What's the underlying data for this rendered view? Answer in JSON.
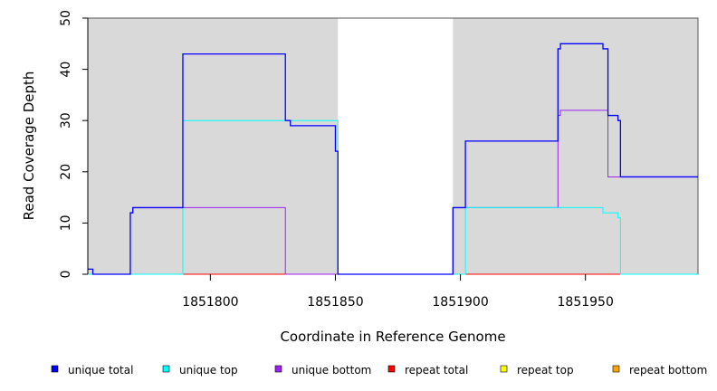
{
  "chart_data": {
    "type": "line",
    "xlabel": "Coordinate in Reference Genome",
    "ylabel": "Read Coverage Depth",
    "xlim": [
      1851751,
      1851995
    ],
    "ylim": [
      0,
      50
    ],
    "x_ticks": [
      1851800,
      1851850,
      1851900,
      1851950
    ],
    "y_ticks": [
      0,
      10,
      20,
      30,
      40,
      50
    ],
    "shaded_regions": [
      [
        1851751,
        1851851
      ],
      [
        1851897,
        1851995
      ]
    ],
    "colors": {
      "background_shade": "#d9d9d9",
      "unique_total": "#0000ff",
      "unique_top": "#00ffff",
      "unique_bottom": "#a020f0",
      "repeat_total": "#ff0000",
      "repeat_top": "#ffff00",
      "repeat_bottom": "#ffa500"
    },
    "legend_placement": "bottom",
    "series": [
      {
        "name": "unique total",
        "color": "#0000ff",
        "steps": [
          [
            1851751,
            1
          ],
          [
            1851753,
            0
          ],
          [
            1851768,
            12
          ],
          [
            1851769,
            13
          ],
          [
            1851789,
            43
          ],
          [
            1851830,
            30
          ],
          [
            1851832,
            29
          ],
          [
            1851850,
            24
          ],
          [
            1851851,
            0
          ],
          [
            1851897,
            13
          ],
          [
            1851902,
            26
          ],
          [
            1851939,
            44
          ],
          [
            1851940,
            45
          ],
          [
            1851957,
            44
          ],
          [
            1851959,
            31
          ],
          [
            1851963,
            30
          ],
          [
            1851964,
            19
          ],
          [
            1851995,
            19
          ]
        ]
      },
      {
        "name": "unique top",
        "color": "#00ffff",
        "steps": [
          [
            1851751,
            0
          ],
          [
            1851789,
            30
          ],
          [
            1851851,
            0
          ],
          [
            1851902,
            13
          ],
          [
            1851957,
            12
          ],
          [
            1851963,
            11
          ],
          [
            1851964,
            0
          ],
          [
            1851995,
            0
          ]
        ]
      },
      {
        "name": "unique bottom",
        "color": "#a020f0",
        "steps": [
          [
            1851751,
            0
          ],
          [
            1851768,
            12
          ],
          [
            1851769,
            13
          ],
          [
            1851830,
            0
          ],
          [
            1851897,
            13
          ],
          [
            1851939,
            31
          ],
          [
            1851940,
            32
          ],
          [
            1851959,
            19
          ],
          [
            1851995,
            19
          ]
        ]
      },
      {
        "name": "repeat total",
        "color": "#ff0000",
        "steps": [
          [
            1851751,
            0
          ],
          [
            1851995,
            0
          ]
        ]
      },
      {
        "name": "repeat top",
        "color": "#ffff00",
        "steps": [
          [
            1851751,
            0
          ],
          [
            1851995,
            0
          ]
        ]
      },
      {
        "name": "repeat bottom",
        "color": "#ffa500",
        "steps": [
          [
            1851751,
            0
          ],
          [
            1851995,
            0
          ]
        ]
      }
    ]
  },
  "legend": [
    {
      "label": "unique total",
      "color": "#0000ff"
    },
    {
      "label": "unique top",
      "color": "#00ffff"
    },
    {
      "label": "unique bottom",
      "color": "#a020f0"
    },
    {
      "label": "repeat total",
      "color": "#ff0000"
    },
    {
      "label": "repeat top",
      "color": "#ffff00"
    },
    {
      "label": "repeat bottom",
      "color": "#ffa500"
    }
  ]
}
